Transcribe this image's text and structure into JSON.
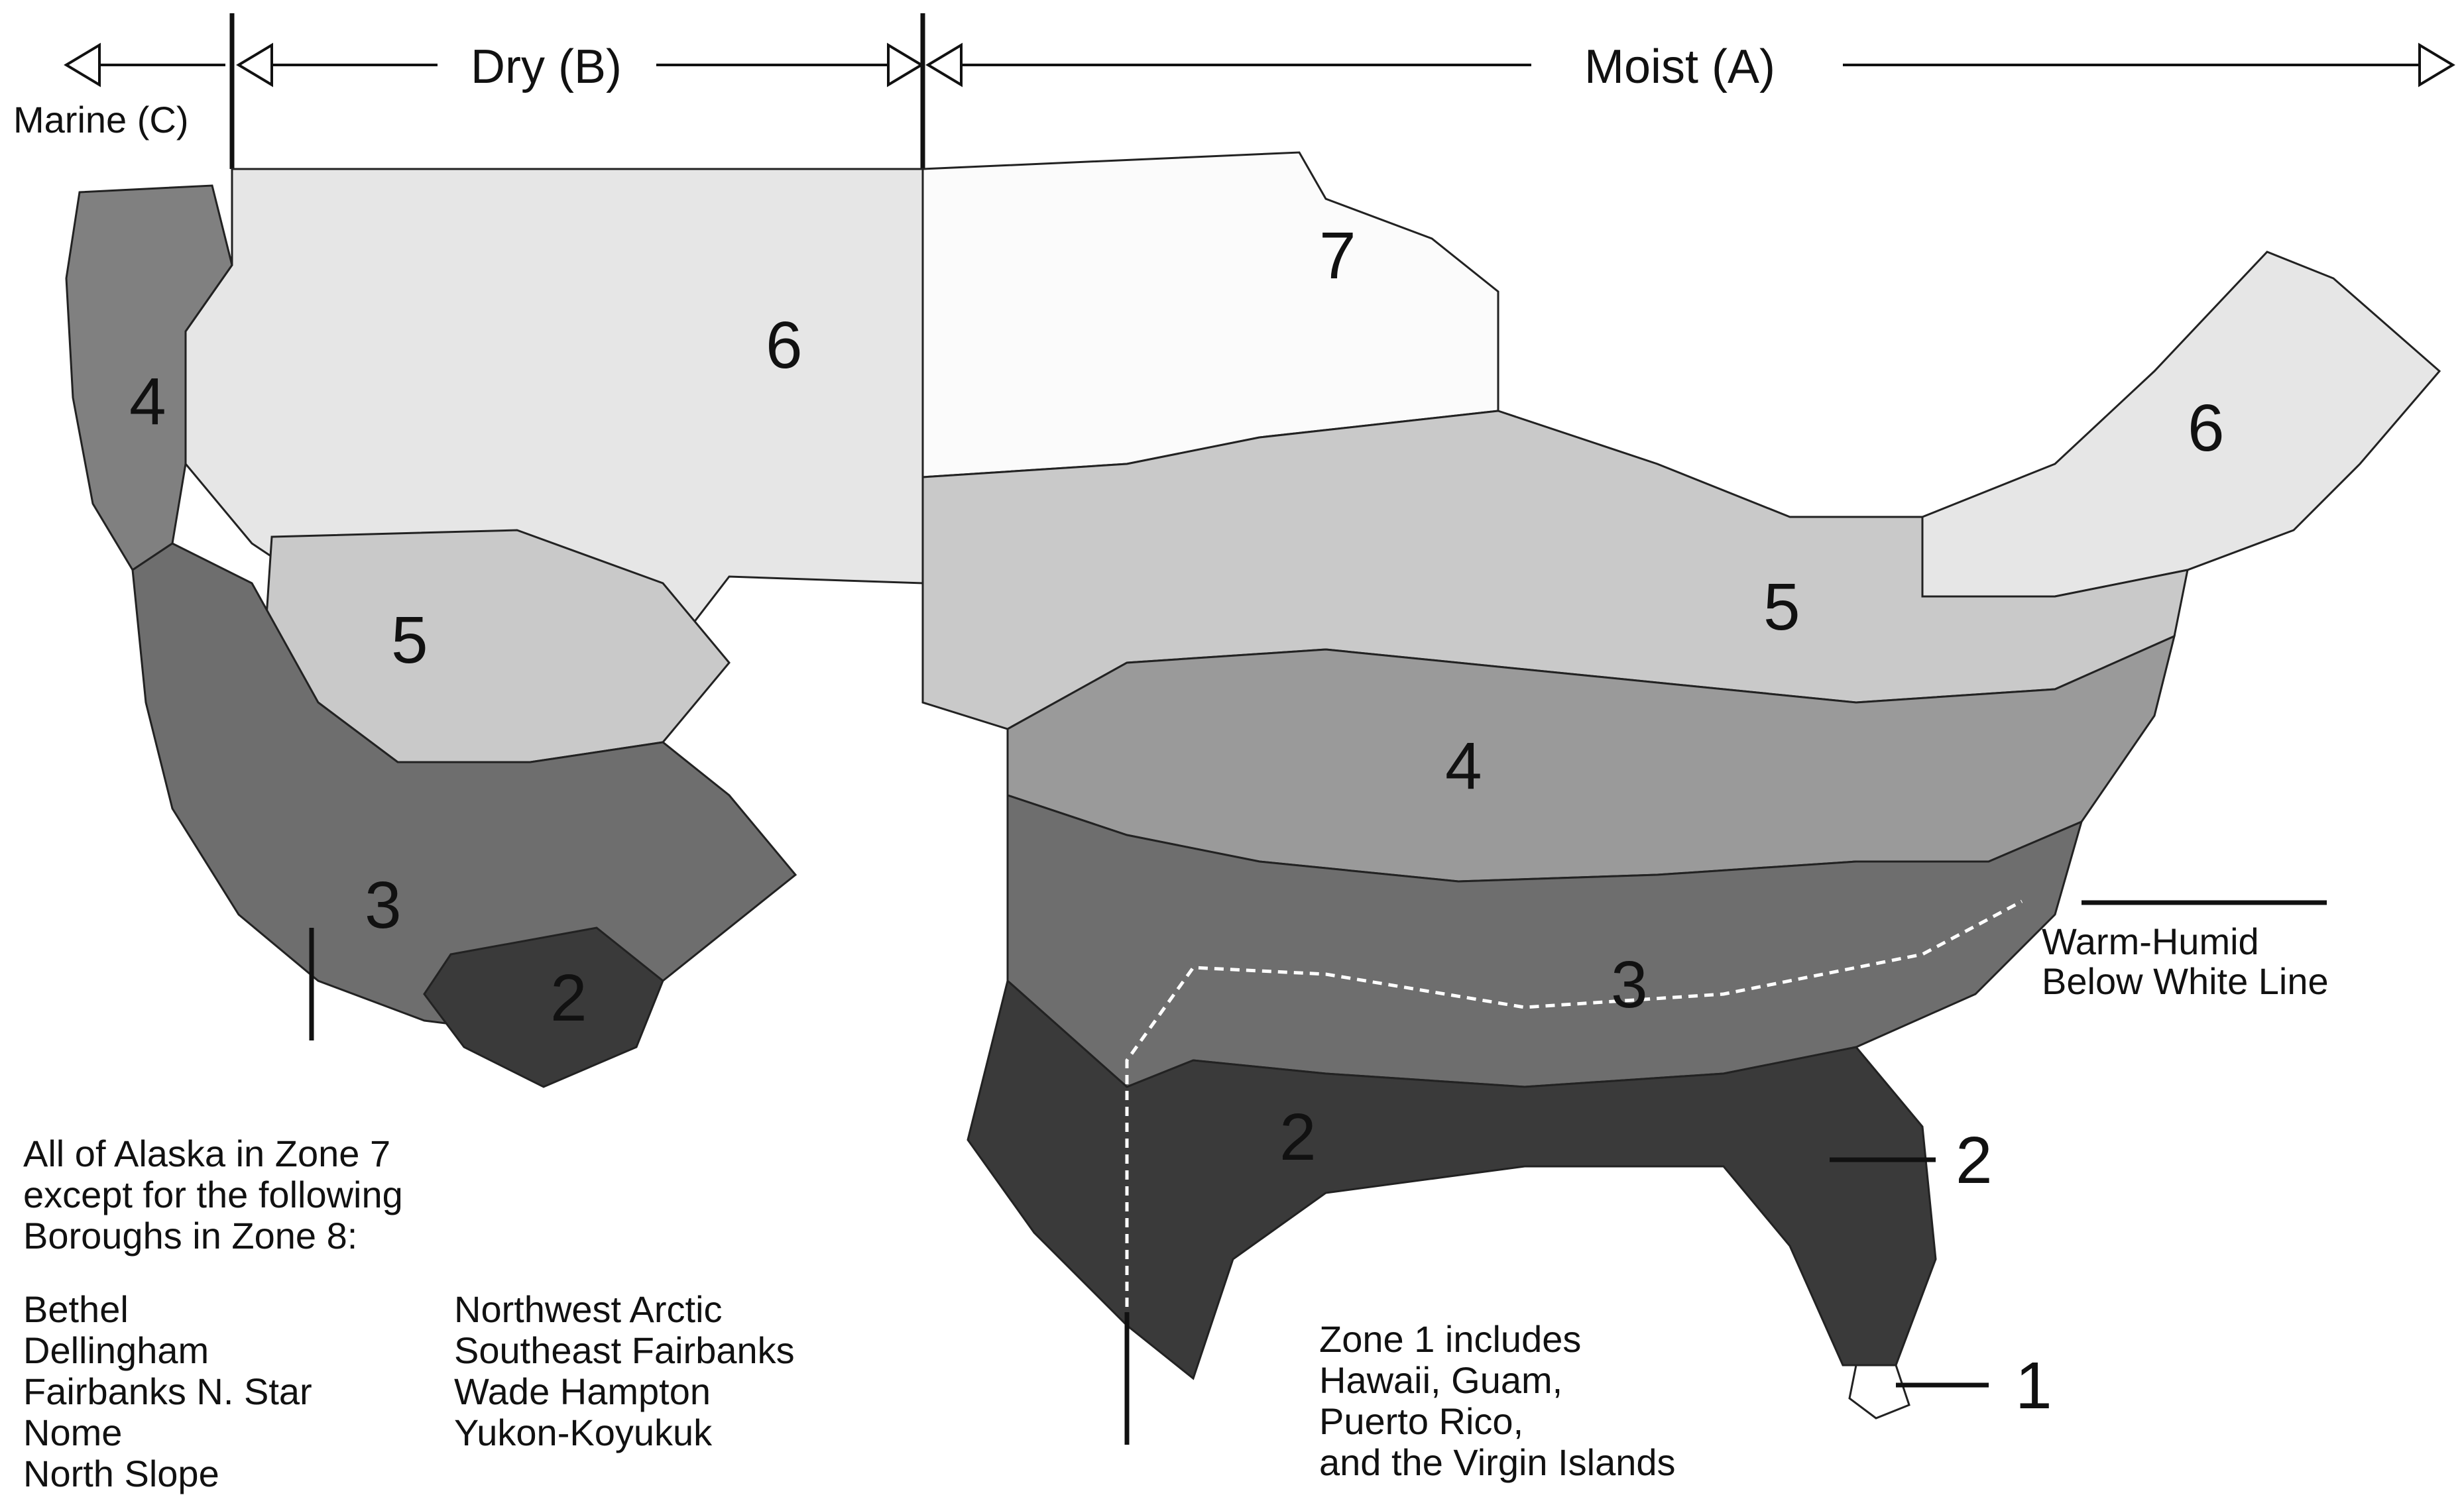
{
  "moisture": {
    "dry": "Dry (B)",
    "moist": "Moist (A)",
    "marine": "Marine (C)"
  },
  "zones": {
    "z1": "1",
    "z2_az": "2",
    "z2_gulf": "2",
    "z2_fl": "2",
    "z3_ca": "3",
    "z3_se": "3",
    "z4_or": "4",
    "z4_mid": "4",
    "z5_nv": "5",
    "z5_oh": "5",
    "z6_mt": "6",
    "z6_ne": "6",
    "z7": "7"
  },
  "warm_humid": {
    "line1": "Warm-Humid",
    "line2": "Below White Line"
  },
  "alaska": {
    "l1": "All of Alaska in Zone 7",
    "l2": "except for the following",
    "l3": "Boroughs in Zone 8:",
    "col1": [
      "Bethel",
      "Dellingham",
      "Fairbanks N. Star",
      "Nome",
      "North Slope"
    ],
    "col2": [
      "Northwest Arctic",
      "Southeast Fairbanks",
      "Wade Hampton",
      "Yukon-Koyukuk"
    ]
  },
  "zone1_note": {
    "l1": "Zone 1 includes",
    "l2": "Hawaii, Guam,",
    "l3": "Puerto Rico,",
    "l4": "and the Virgin Islands"
  },
  "colors": {
    "zone1": "#ffffff",
    "zone2": "#3a3a3a",
    "zone3": "#6e6e6e",
    "zone4": "#9a9a9a",
    "zone5": "#c9c9c9",
    "zone6": "#e6e6e6",
    "zone7": "#fbfbfb",
    "marine": "#808080"
  }
}
